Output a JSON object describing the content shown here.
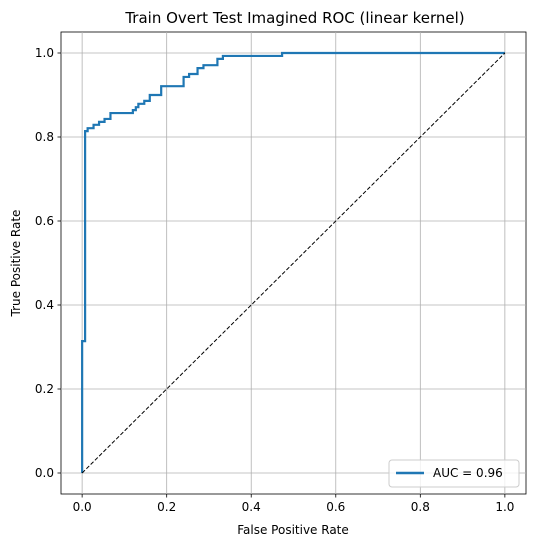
{
  "chart_data": {
    "type": "line",
    "title": "Train Overt Test Imagined ROC (linear kernel)",
    "xlabel": "False Positive Rate",
    "ylabel": "True Positive Rate",
    "xlim": [
      -0.05,
      1.05
    ],
    "ylim": [
      -0.05,
      1.05
    ],
    "xticks": [
      0.0,
      0.2,
      0.4,
      0.6,
      0.8,
      1.0
    ],
    "yticks": [
      0.0,
      0.2,
      0.4,
      0.6,
      0.8,
      1.0
    ],
    "xtick_labels": [
      "0.0",
      "0.2",
      "0.4",
      "0.6",
      "0.8",
      "1.0"
    ],
    "ytick_labels": [
      "0.0",
      "0.2",
      "0.4",
      "0.6",
      "0.8",
      "1.0"
    ],
    "grid": true,
    "legend_position": "lower-right",
    "series": [
      {
        "name": "AUC = 0.96",
        "color": "#1f77b4",
        "style": "solid",
        "x": [
          0.0,
          0.0,
          0.0,
          0.007,
          0.007,
          0.013,
          0.013,
          0.013,
          0.027,
          0.027,
          0.04,
          0.04,
          0.053,
          0.053,
          0.067,
          0.067,
          0.12,
          0.12,
          0.127,
          0.127,
          0.133,
          0.133,
          0.147,
          0.147,
          0.16,
          0.16,
          0.187,
          0.187,
          0.24,
          0.24,
          0.253,
          0.253,
          0.273,
          0.273,
          0.287,
          0.287,
          0.32,
          0.32,
          0.333,
          0.333,
          0.473,
          0.473,
          1.0
        ],
        "y": [
          0.0,
          0.314,
          0.314,
          0.314,
          0.814,
          0.814,
          0.821,
          0.821,
          0.821,
          0.829,
          0.829,
          0.836,
          0.836,
          0.843,
          0.843,
          0.857,
          0.857,
          0.864,
          0.864,
          0.871,
          0.871,
          0.879,
          0.879,
          0.886,
          0.886,
          0.9,
          0.9,
          0.921,
          0.921,
          0.943,
          0.943,
          0.95,
          0.95,
          0.964,
          0.964,
          0.971,
          0.971,
          0.986,
          0.986,
          0.993,
          0.993,
          1.0,
          1.0
        ]
      },
      {
        "name": "",
        "color": "#000000",
        "style": "dashed",
        "x": [
          0.0,
          1.0
        ],
        "y": [
          0.0,
          1.0
        ]
      }
    ],
    "legend": [
      {
        "label": "AUC = 0.96",
        "color": "#1f77b4"
      }
    ]
  }
}
